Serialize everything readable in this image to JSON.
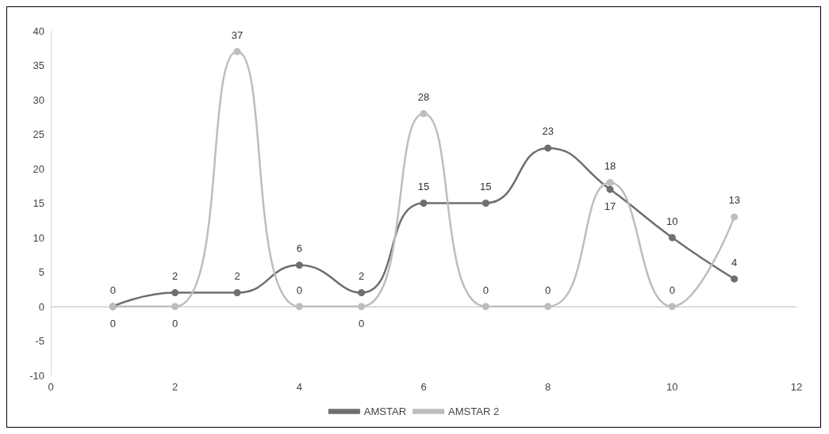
{
  "chart_data": {
    "type": "line",
    "x": [
      1,
      2,
      3,
      4,
      5,
      6,
      7,
      8,
      9,
      10,
      11
    ],
    "series": [
      {
        "name": "AMSTAR",
        "color": "#6f6f6f",
        "values": [
          0,
          2,
          2,
          6,
          2,
          15,
          15,
          23,
          17,
          10,
          4
        ]
      },
      {
        "name": "AMSTAR 2",
        "color": "#bdbdbd",
        "values": [
          0,
          0,
          37,
          0,
          0,
          28,
          0,
          0,
          18,
          0,
          13
        ]
      }
    ],
    "xlim": [
      0,
      12
    ],
    "xticks": [
      0,
      2,
      4,
      6,
      8,
      10,
      12
    ],
    "ylim": [
      -10,
      40
    ],
    "yticks": [
      -10,
      -5,
      0,
      5,
      10,
      15,
      20,
      25,
      30,
      35,
      40
    ],
    "ref_lines": [
      {
        "axis": "y",
        "value": 0,
        "color": "#bfbfbf"
      }
    ],
    "grid": false,
    "legend": "bottom",
    "marker": "circle",
    "line_style": "solid",
    "data_labels": true
  }
}
